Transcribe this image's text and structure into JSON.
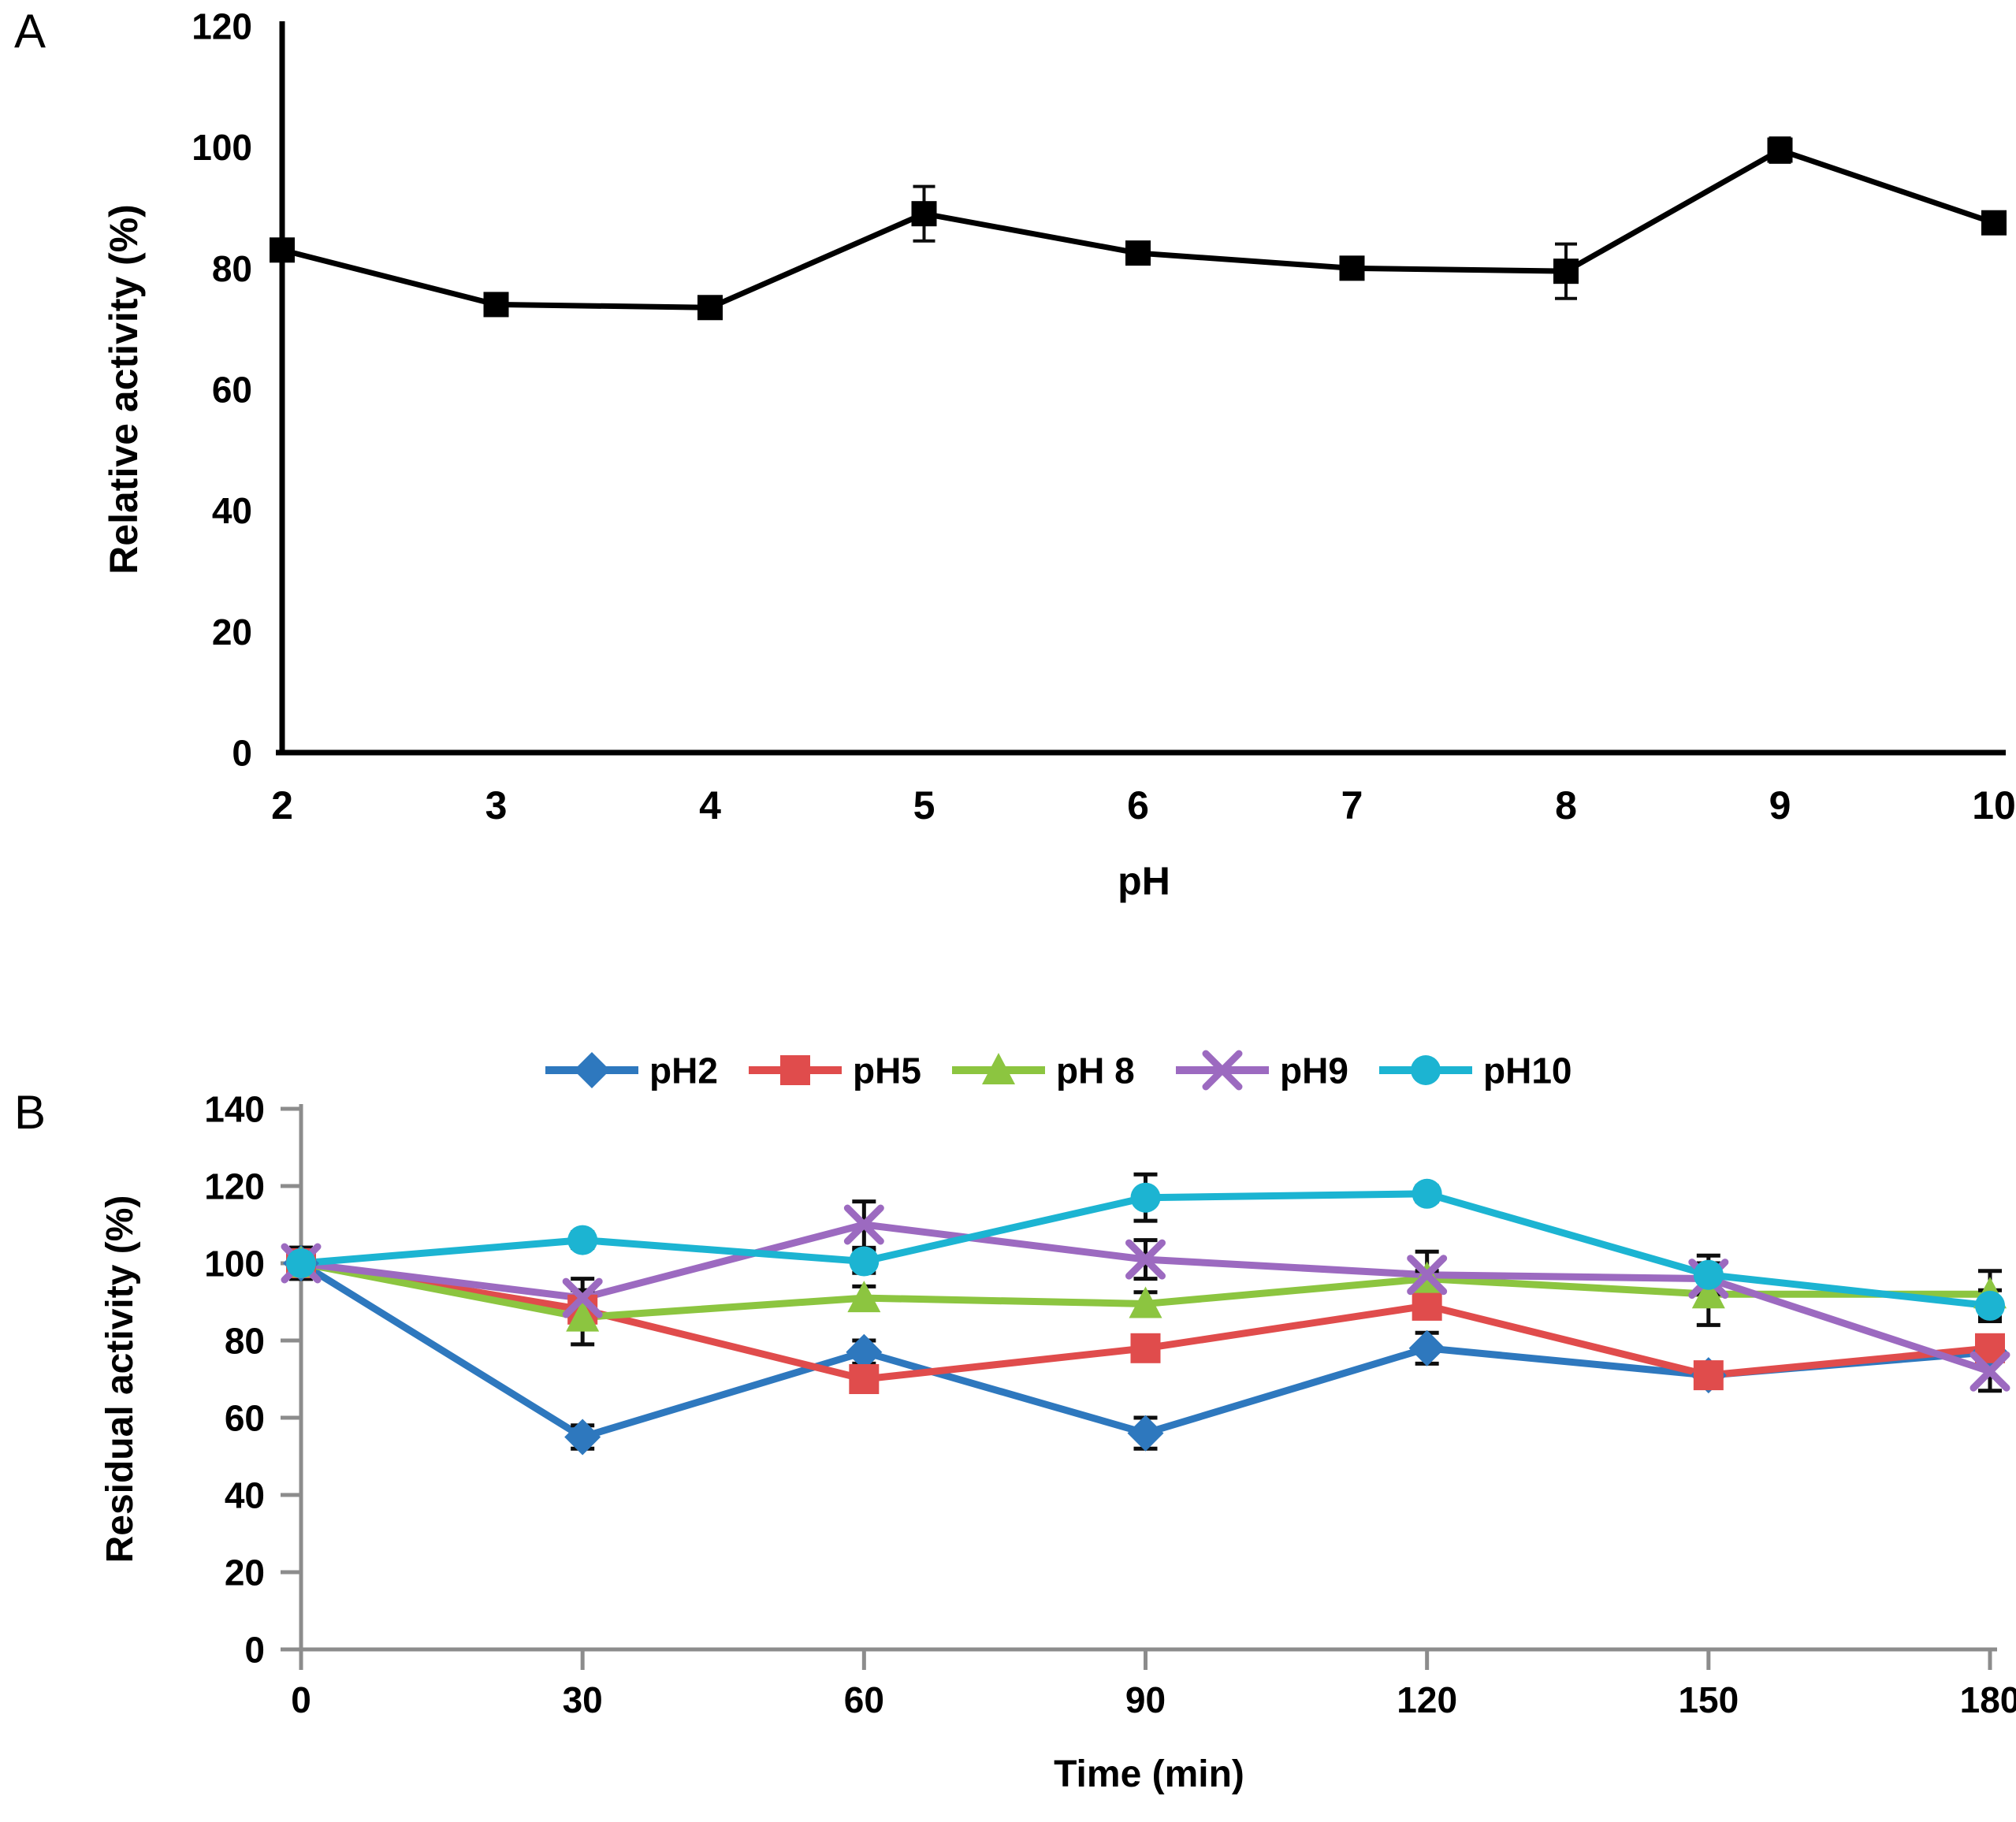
{
  "page": {
    "background": "#ffffff"
  },
  "panel_a": {
    "letter": "A"
  },
  "panel_b": {
    "letter": "B"
  },
  "chart_data": [
    {
      "id": "A",
      "type": "line",
      "title": "",
      "xlabel": "pH",
      "ylabel": "Relative activity (%)",
      "x": [
        2,
        3,
        4,
        5,
        6,
        7,
        8,
        9,
        10
      ],
      "ylim": [
        0,
        120
      ],
      "ytick_step": 20,
      "grid": false,
      "legend": null,
      "axis_color": "#000000",
      "series": [
        {
          "name": "relative activity",
          "color": "#000000",
          "marker": "square",
          "values": [
            83,
            74,
            73.5,
            89,
            82.5,
            80,
            79.5,
            99.5,
            87.5
          ],
          "errors": [
            1.5,
            1,
            1,
            4.5,
            1.5,
            1.5,
            4.5,
            2,
            1.5
          ]
        }
      ]
    },
    {
      "id": "B",
      "type": "line",
      "title": "",
      "xlabel": "Time (min)",
      "ylabel": "Residual activity (%)",
      "x": [
        0,
        30,
        60,
        90,
        120,
        150,
        180
      ],
      "ylim": [
        0,
        140
      ],
      "ytick_step": 20,
      "grid": false,
      "legend": [
        "pH2",
        "pH5",
        "pH 8",
        "pH9",
        "pH10"
      ],
      "legend_position": "top",
      "axis_color": "#8c8c8c",
      "series": [
        {
          "name": "pH2",
          "color": "#2E78BE",
          "marker": "diamond",
          "values": [
            100,
            55,
            77,
            56,
            78,
            71,
            77
          ],
          "errors": [
            4,
            3,
            3,
            4,
            4,
            2,
            2
          ]
        },
        {
          "name": "pH5",
          "color": "#E04C4C",
          "marker": "square",
          "values": [
            100,
            88,
            70,
            78,
            89,
            71,
            78
          ],
          "errors": [
            4,
            5,
            2,
            3,
            3,
            3,
            3
          ]
        },
        {
          "name": "pH 8",
          "color": "#8CC540",
          "marker": "triangle",
          "values": [
            100,
            86,
            91,
            89.5,
            96,
            92,
            92
          ],
          "errors": [
            4,
            7,
            3,
            3,
            2,
            8,
            6
          ]
        },
        {
          "name": "pH9",
          "color": "#9C6AC0",
          "marker": "x",
          "values": [
            100,
            91,
            110,
            101,
            97,
            96,
            72
          ],
          "errors": [
            4,
            5,
            6,
            5,
            6,
            3,
            5
          ]
        },
        {
          "name": "pH10",
          "color": "#1CB4D2",
          "marker": "circle",
          "values": [
            100,
            106,
            100.5,
            117,
            118,
            97,
            89
          ],
          "errors": [
            4,
            2,
            3,
            6,
            2,
            5,
            4
          ]
        }
      ]
    }
  ]
}
